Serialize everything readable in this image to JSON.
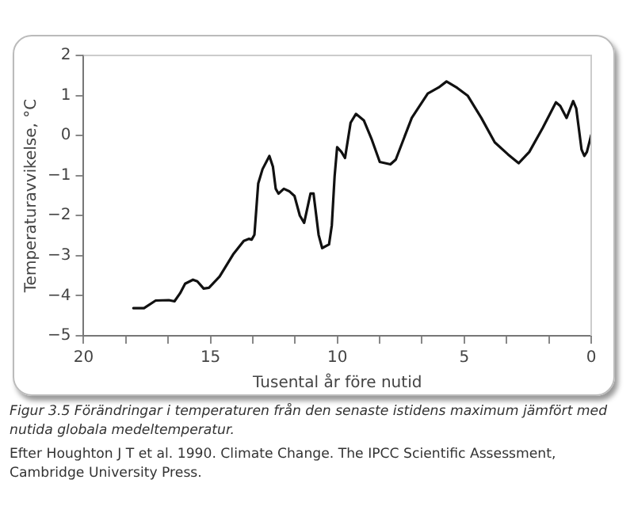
{
  "chart_data": {
    "type": "line",
    "xlabel": "Tusental år före nutid",
    "ylabel": "Temperaturavvikelse, °C",
    "xlim": [
      20,
      0
    ],
    "ylim": [
      -5,
      2
    ],
    "xticks": [
      20,
      {
        "value": 18.33,
        "label": null
      },
      {
        "value": 16.67,
        "label": null
      },
      15,
      {
        "value": 13.33,
        "label": null
      },
      {
        "value": 11.67,
        "label": null
      },
      10,
      {
        "value": 8.33,
        "label": null
      },
      {
        "value": 6.67,
        "label": null
      },
      5,
      {
        "value": 3.33,
        "label": null
      },
      {
        "value": 1.67,
        "label": null
      },
      0
    ],
    "yticks": [
      2,
      1,
      0,
      {
        "value": -1,
        "label": "−1"
      },
      {
        "value": -2,
        "label": "−2"
      },
      {
        "value": -3,
        "label": "−3"
      },
      {
        "value": -4,
        "label": "−4"
      },
      {
        "value": -5,
        "label": "−5"
      }
    ],
    "grid": false,
    "legend": false,
    "marker": "none",
    "line_style": "solid",
    "annotations": [
      "Figur 3.5  Förändringar i temperaturen från den senaste istidens maximum jämfört med nutida globala medeltemperatur.",
      "Efter Houghton J T et al. 1990. Climate Change. The IPCC Scientific Assessment, Cambridge University Press."
    ],
    "series": [
      {
        "color": "#111111",
        "x": [
          18.04,
          17.62,
          17.16,
          16.64,
          16.42,
          16.2,
          16.0,
          15.69,
          15.52,
          15.27,
          15.06,
          14.64,
          14.11,
          13.69,
          13.48,
          13.38,
          13.27,
          13.12,
          12.95,
          12.68,
          12.54,
          12.43,
          12.32,
          12.11,
          11.9,
          11.69,
          11.48,
          11.31,
          11.06,
          10.94,
          10.74,
          10.6,
          10.33,
          10.22,
          10.11,
          10.01,
          9.84,
          9.7,
          9.48,
          9.27,
          8.96,
          8.64,
          8.33,
          7.91,
          7.7,
          7.07,
          6.44,
          6.01,
          5.7,
          5.28,
          4.86,
          4.33,
          3.8,
          3.28,
          2.86,
          2.44,
          1.91,
          1.39,
          1.22,
          0.97,
          0.71,
          0.59,
          0.38,
          0.27,
          0.17,
          0.0
        ],
        "values": [
          -4.31,
          -4.31,
          -4.12,
          -4.11,
          -4.14,
          -3.94,
          -3.7,
          -3.6,
          -3.64,
          -3.82,
          -3.8,
          -3.52,
          -2.97,
          -2.63,
          -2.58,
          -2.6,
          -2.48,
          -1.2,
          -0.84,
          -0.51,
          -0.78,
          -1.33,
          -1.45,
          -1.33,
          -1.39,
          -1.51,
          -2.0,
          -2.18,
          -1.45,
          -1.45,
          -2.48,
          -2.81,
          -2.72,
          -2.24,
          -1.02,
          -0.29,
          -0.41,
          -0.56,
          0.32,
          0.54,
          0.38,
          -0.11,
          -0.66,
          -0.72,
          -0.6,
          0.44,
          1.05,
          1.2,
          1.35,
          1.19,
          0.99,
          0.44,
          -0.17,
          -0.47,
          -0.69,
          -0.41,
          0.19,
          0.83,
          0.74,
          0.44,
          0.86,
          0.68,
          -0.35,
          -0.51,
          -0.41,
          0.01
        ]
      }
    ]
  }
}
